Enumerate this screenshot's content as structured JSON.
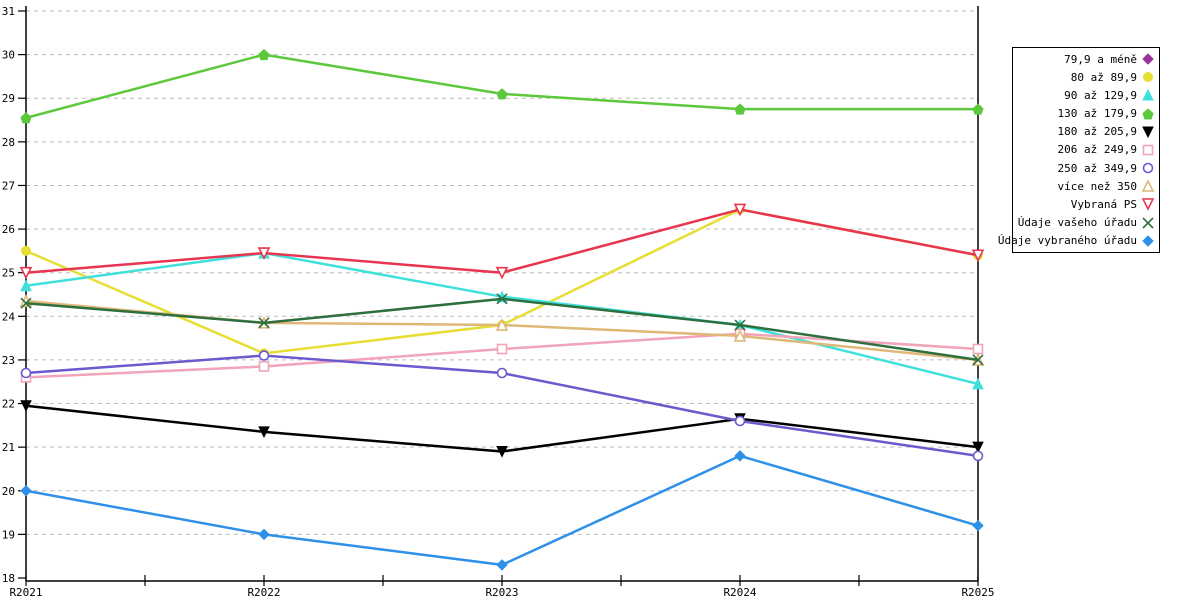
{
  "chart_data": {
    "type": "line",
    "title": "",
    "xlabel": "",
    "ylabel": "",
    "ylim": [
      18,
      31
    ],
    "ytick_step": 1,
    "grid": "horizontal-dashed",
    "legend_position": "right-outside",
    "categories": [
      "R2021",
      "R2022",
      "R2023",
      "R2024",
      "R2025"
    ],
    "series": [
      {
        "name": "79,9 a méně",
        "color": "#993399",
        "marker": "diamond",
        "filled": true,
        "values": null
      },
      {
        "name": "80 až 89,9",
        "color": "#E6DE32",
        "marker": "circle",
        "filled": true,
        "values": [
          25.5,
          23.15,
          23.8,
          26.45,
          25.4
        ]
      },
      {
        "name": "90 až 129,9",
        "color": "#3FE0DC",
        "marker": "triangle-up",
        "filled": true,
        "values": [
          24.7,
          25.45,
          24.45,
          23.8,
          22.45
        ]
      },
      {
        "name": "130 až 179,9",
        "color": "#5DC83C",
        "marker": "pentagon",
        "filled": true,
        "values": [
          28.55,
          30.0,
          29.1,
          28.75,
          28.75
        ]
      },
      {
        "name": "180 až 205,9",
        "color": "#000000",
        "marker": "triangle-down",
        "filled": true,
        "values": [
          21.95,
          21.35,
          20.9,
          21.65,
          21.0
        ]
      },
      {
        "name": "206 až 249,9",
        "color": "#F2A4B8",
        "marker": "square",
        "filled": false,
        "values": [
          22.6,
          22.85,
          23.25,
          23.6,
          23.25
        ]
      },
      {
        "name": "250 až 349,9",
        "color": "#6A5ACD",
        "marker": "circle",
        "filled": false,
        "values": [
          22.7,
          23.1,
          22.7,
          21.6,
          20.8
        ]
      },
      {
        "name": "více než 350",
        "color": "#DFB878",
        "marker": "triangle-up",
        "filled": false,
        "values": [
          24.35,
          23.85,
          23.8,
          23.55,
          23.0
        ]
      },
      {
        "name": "Vybraná PS",
        "color": "#E8354F",
        "marker": "triangle-down",
        "filled": false,
        "values": [
          25.0,
          25.45,
          25.0,
          26.45,
          25.4
        ]
      },
      {
        "name": "Údaje vašeho úřadu",
        "color": "#2E6F3E",
        "marker": "x",
        "filled": false,
        "values": [
          24.3,
          23.85,
          24.4,
          23.8,
          23.0
        ]
      },
      {
        "name": "Údaje vybraného úřadu",
        "color": "#2E90E8",
        "marker": "diamond",
        "filled": true,
        "values": [
          20.0,
          19.0,
          18.3,
          20.8,
          19.2
        ]
      }
    ],
    "axis_color": "#000000",
    "gridline_color": "#bdbdbd"
  }
}
